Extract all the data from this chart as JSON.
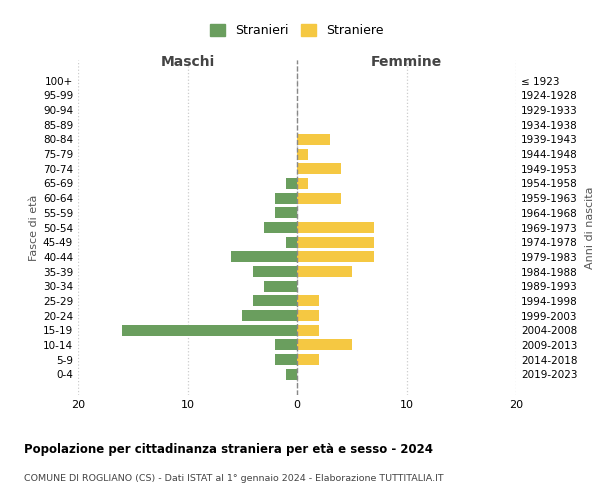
{
  "age_groups": [
    "0-4",
    "5-9",
    "10-14",
    "15-19",
    "20-24",
    "25-29",
    "30-34",
    "35-39",
    "40-44",
    "45-49",
    "50-54",
    "55-59",
    "60-64",
    "65-69",
    "70-74",
    "75-79",
    "80-84",
    "85-89",
    "90-94",
    "95-99",
    "100+"
  ],
  "birth_years": [
    "2019-2023",
    "2014-2018",
    "2009-2013",
    "2004-2008",
    "1999-2003",
    "1994-1998",
    "1989-1993",
    "1984-1988",
    "1979-1983",
    "1974-1978",
    "1969-1973",
    "1964-1968",
    "1959-1963",
    "1954-1958",
    "1949-1953",
    "1944-1948",
    "1939-1943",
    "1934-1938",
    "1929-1933",
    "1924-1928",
    "≤ 1923"
  ],
  "maschi": [
    1,
    2,
    2,
    16,
    5,
    4,
    3,
    4,
    6,
    1,
    3,
    2,
    2,
    1,
    0,
    0,
    0,
    0,
    0,
    0,
    0
  ],
  "femmine": [
    0,
    2,
    5,
    2,
    2,
    2,
    0,
    5,
    7,
    7,
    7,
    0,
    4,
    1,
    4,
    1,
    3,
    0,
    0,
    0,
    0
  ],
  "color_maschi": "#6a9e5e",
  "color_femmine": "#f5c842",
  "title": "Popolazione per cittadinanza straniera per età e sesso - 2024",
  "subtitle": "COMUNE DI ROGLIANO (CS) - Dati ISTAT al 1° gennaio 2024 - Elaborazione TUTTITALIA.IT",
  "xlabel_left": "Maschi",
  "xlabel_right": "Femmine",
  "ylabel_left": "Fasce di età",
  "ylabel_right": "Anni di nascita",
  "xlim": 20,
  "legend_stranieri": "Stranieri",
  "legend_straniere": "Straniere",
  "background_color": "#ffffff",
  "grid_color": "#cccccc"
}
